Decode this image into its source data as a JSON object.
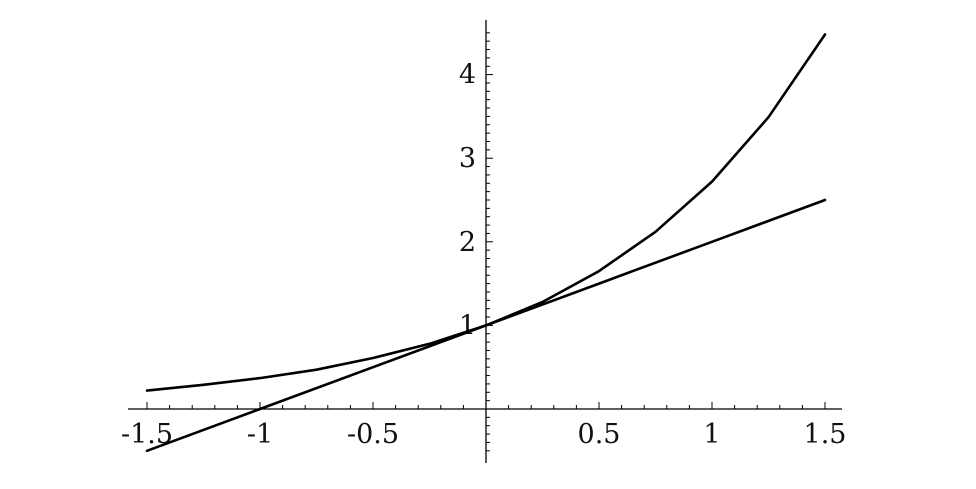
{
  "chart_data": {
    "type": "line",
    "title": "",
    "xlabel": "",
    "ylabel": "",
    "xlim": [
      -1.5,
      1.5
    ],
    "ylim": [
      -0.6,
      4.6
    ],
    "grid": false,
    "legend": "none",
    "line_color": "#000000",
    "x_ticks": [
      {
        "value": -1.5,
        "label": "-1.5"
      },
      {
        "value": -1,
        "label": "-1"
      },
      {
        "value": -0.5,
        "label": "-0.5"
      },
      {
        "value": 0.5,
        "label": "0.5"
      },
      {
        "value": 1,
        "label": "1"
      },
      {
        "value": 1.5,
        "label": "1.5"
      }
    ],
    "y_ticks": [
      {
        "value": 1,
        "label": "1"
      },
      {
        "value": 2,
        "label": "2"
      },
      {
        "value": 3,
        "label": "3"
      },
      {
        "value": 4,
        "label": "4"
      }
    ],
    "series": [
      {
        "x": [
          -1.5,
          -1.25,
          -1.0,
          -0.75,
          -0.5,
          -0.25,
          0.0,
          0.25,
          0.5,
          0.75,
          1.0,
          1.25,
          1.5
        ],
        "y": [
          0.22,
          0.29,
          0.37,
          0.47,
          0.61,
          0.78,
          1.0,
          1.28,
          1.65,
          2.12,
          2.72,
          3.49,
          4.48
        ]
      },
      {
        "x": [
          -1.5,
          -1.0,
          -0.5,
          0.0,
          0.5,
          1.0,
          1.5
        ],
        "y": [
          -0.5,
          0.0,
          0.5,
          1.0,
          1.5,
          2.0,
          2.5
        ]
      }
    ]
  }
}
